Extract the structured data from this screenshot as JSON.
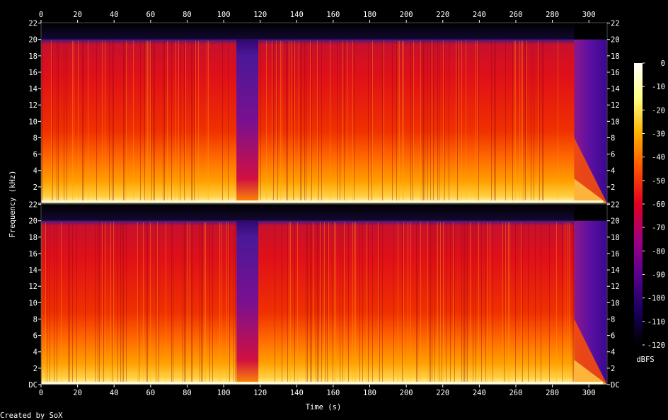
{
  "chart_data": {
    "type": "heatmap",
    "subtype": "spectrogram",
    "title": "",
    "xlabel": "Time (s)",
    "ylabel": "Frequency (kHz)",
    "footer": "Created by SoX",
    "xlim": [
      0,
      310
    ],
    "x_ticks": [
      0,
      20,
      40,
      60,
      80,
      100,
      120,
      140,
      160,
      180,
      200,
      220,
      240,
      260,
      280,
      300
    ],
    "x_tick_labels": [
      "0",
      "20",
      "40",
      "60",
      "80",
      "100",
      "120",
      "140",
      "160",
      "180",
      "200",
      "220",
      "240",
      "260",
      "280",
      "300"
    ],
    "ylim_khz": [
      0,
      22.05
    ],
    "channels": [
      {
        "y_ticks": [
          0,
          2,
          4,
          6,
          8,
          10,
          12,
          14,
          16,
          18,
          20,
          22
        ],
        "y_tick_labels": [
          "",
          "2",
          "4",
          "6",
          "8",
          "10",
          "12",
          "14",
          "16",
          "18",
          "20",
          "22"
        ]
      },
      {
        "y_ticks": [
          0,
          2,
          4,
          6,
          8,
          10,
          12,
          14,
          16,
          18,
          20,
          22
        ],
        "y_tick_labels": [
          "DC",
          "2",
          "4",
          "6",
          "8",
          "10",
          "12",
          "14",
          "16",
          "18",
          "20",
          "22"
        ]
      }
    ],
    "lowpass_cutoff_khz": 20,
    "quiet_section_s": [
      107,
      119
    ],
    "fade_out_start_s": 292,
    "end_s": 310,
    "colorbar": {
      "label": "dBFS",
      "range": [
        -120,
        0
      ],
      "ticks": [
        0,
        -10,
        -20,
        -30,
        -40,
        -50,
        -60,
        -70,
        -80,
        -90,
        -100,
        -110,
        -120
      ],
      "tick_labels": [
        "0",
        "-10",
        "-20",
        "-30",
        "-40",
        "-50",
        "-60",
        "-70",
        "-80",
        "-90",
        "-100",
        "-110",
        "-120"
      ],
      "colors": [
        "#000000",
        "#1a0060",
        "#5a0090",
        "#a00080",
        "#e00020",
        "#ff5000",
        "#ffb000",
        "#ffff80",
        "#ffffff"
      ]
    }
  }
}
